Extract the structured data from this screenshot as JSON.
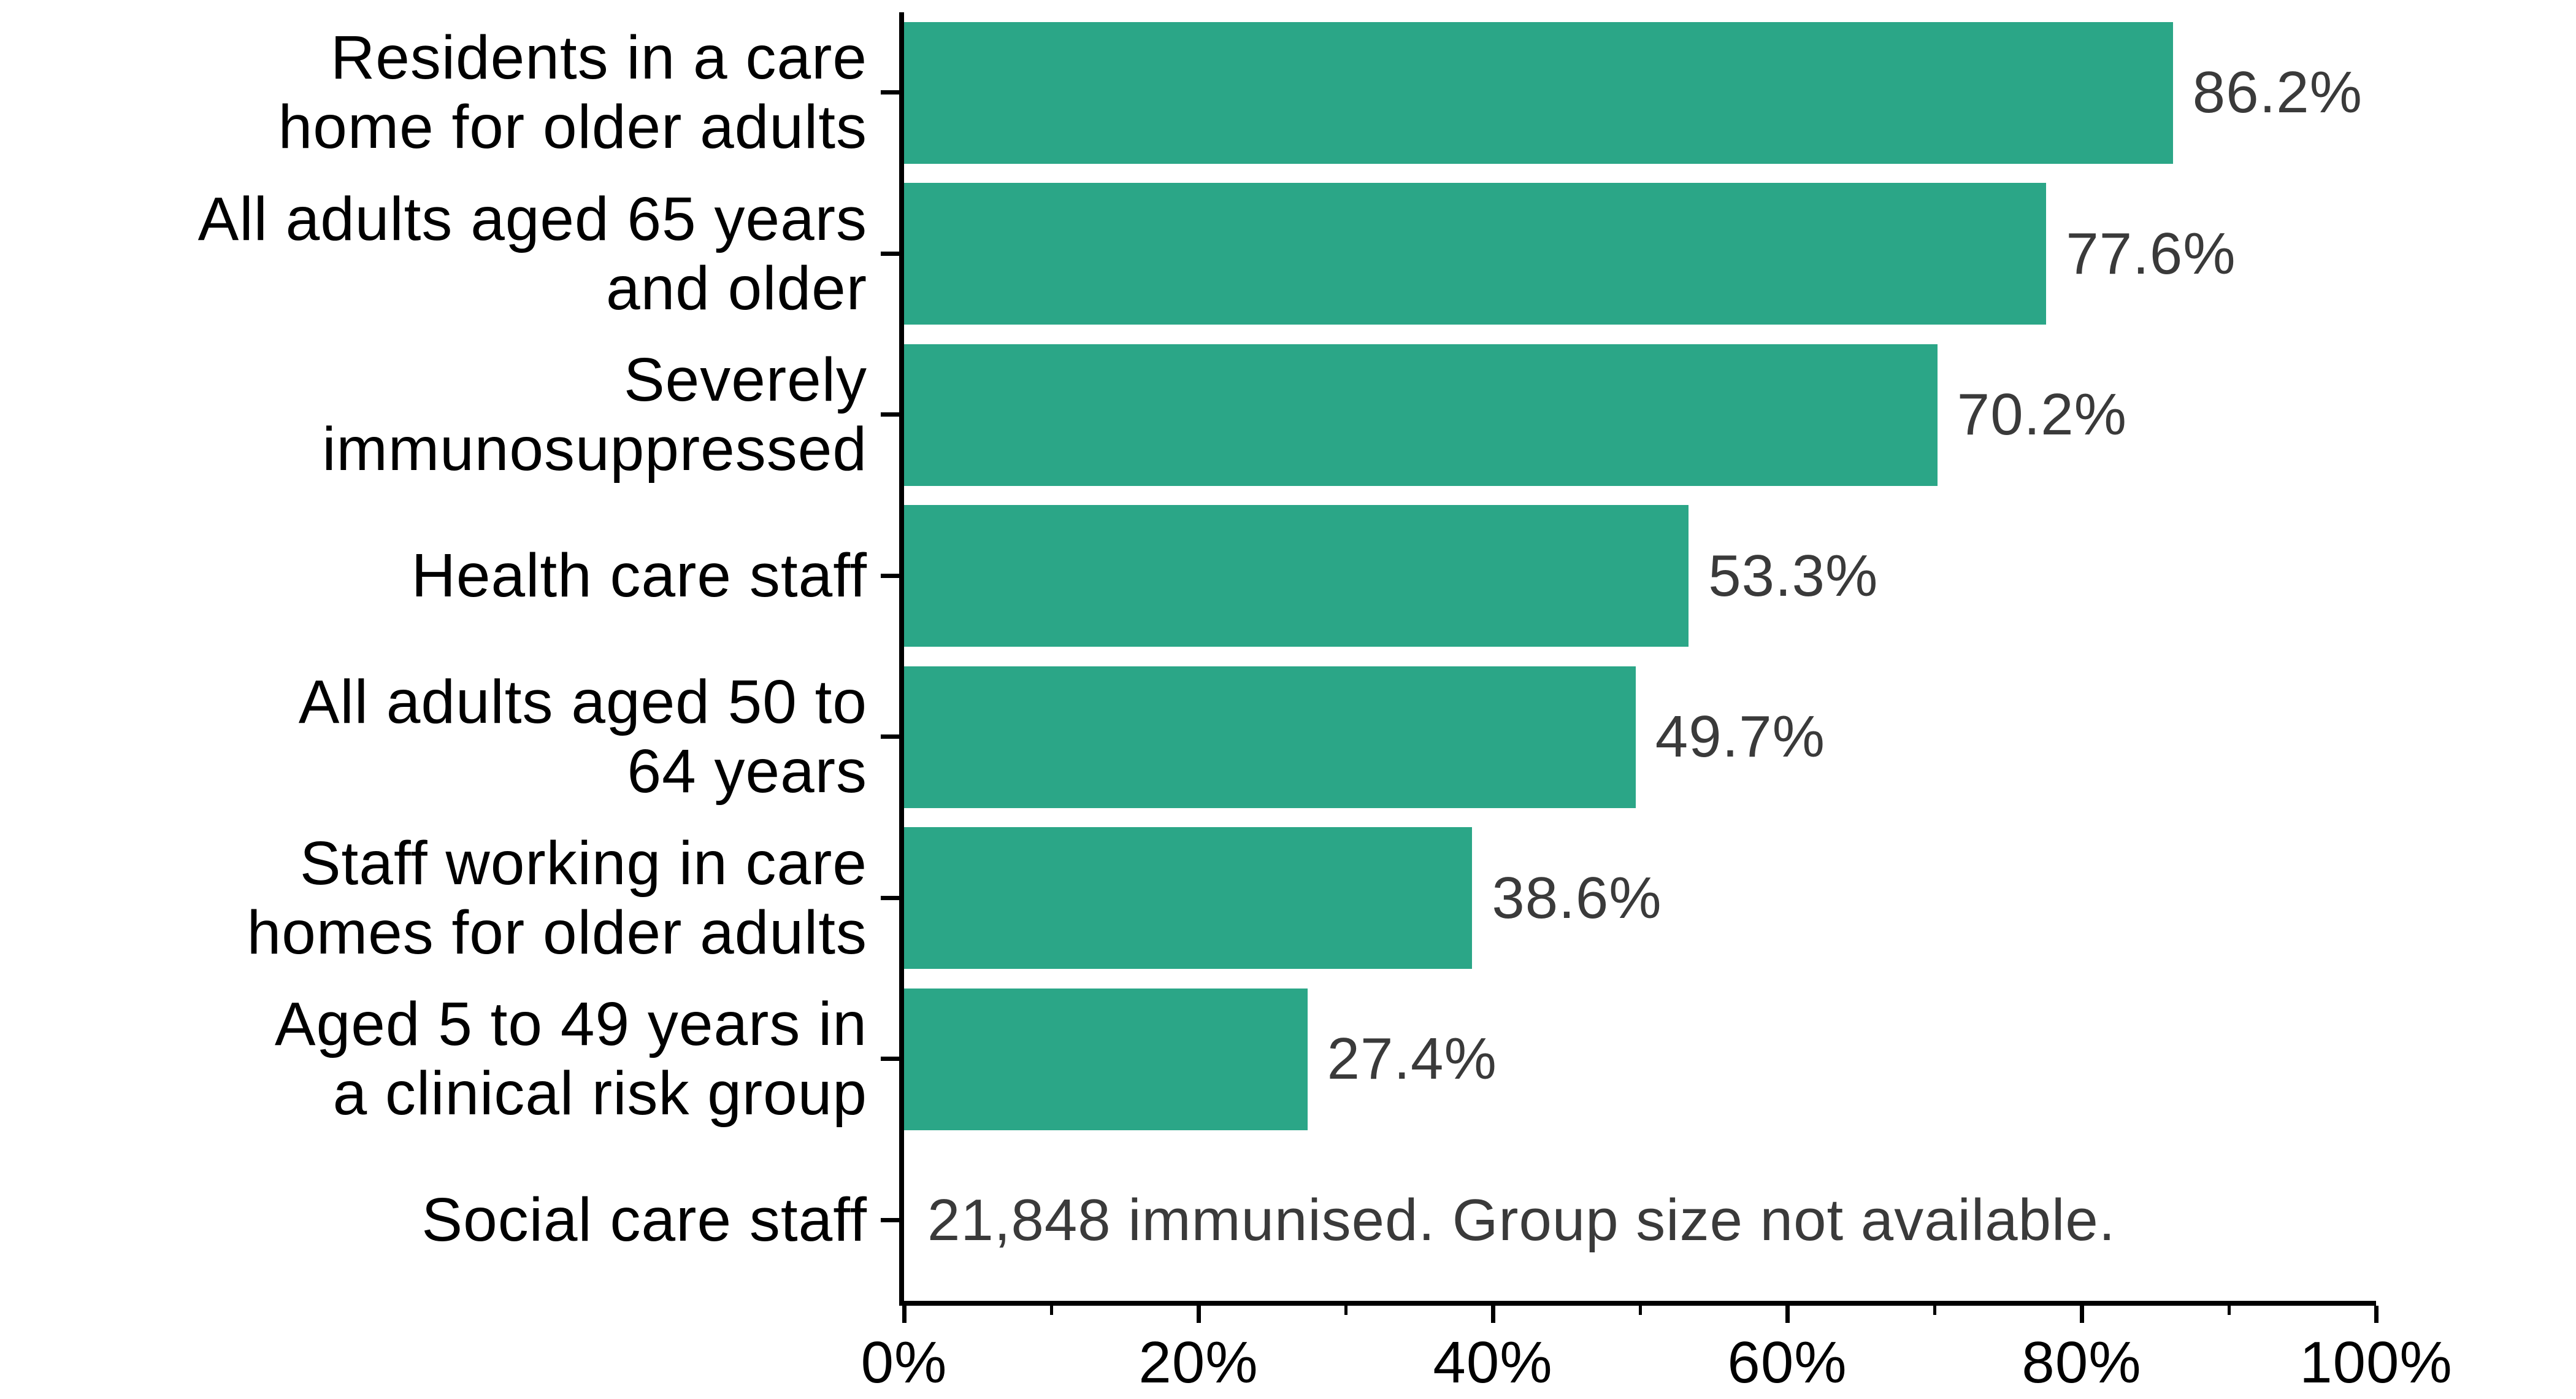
{
  "chart_data": {
    "type": "bar",
    "orientation": "horizontal",
    "title": "",
    "xlabel": "",
    "ylabel": "",
    "xlim": [
      0,
      100
    ],
    "grid": false,
    "legend": "none",
    "bar_color": "#2ba687",
    "value_label_color": "#3a3a3a",
    "category_label_color": "#000000",
    "axis_color": "#000000",
    "x_tick_labels": [
      "0%",
      "20%",
      "40%",
      "60%",
      "80%",
      "100%"
    ],
    "x_major_ticks_pct": [
      0,
      20,
      40,
      60,
      80,
      100
    ],
    "x_minor_ticks_pct": [
      10,
      30,
      50,
      70,
      90
    ],
    "rows": [
      {
        "label": "Residents in a care\nhome for older adults",
        "value_pct": 86.2,
        "value_label": "86.2%"
      },
      {
        "label": "All adults aged 65 years\nand older",
        "value_pct": 77.6,
        "value_label": "77.6%"
      },
      {
        "label": "Severely\nimmunosuppressed",
        "value_pct": 70.2,
        "value_label": "70.2%"
      },
      {
        "label": "Health care staff",
        "value_pct": 53.3,
        "value_label": "53.3%"
      },
      {
        "label": "All adults aged 50 to\n64 years",
        "value_pct": 49.7,
        "value_label": "49.7%"
      },
      {
        "label": "Staff working in care\nhomes for older adults",
        "value_pct": 38.6,
        "value_label": "38.6%"
      },
      {
        "label": "Aged 5 to 49 years in\na clinical risk group",
        "value_pct": 27.4,
        "value_label": "27.4%"
      },
      {
        "label": "Social care staff",
        "value_pct": null,
        "value_label": "",
        "note": "21,848 immunised. Group size not available."
      }
    ]
  }
}
